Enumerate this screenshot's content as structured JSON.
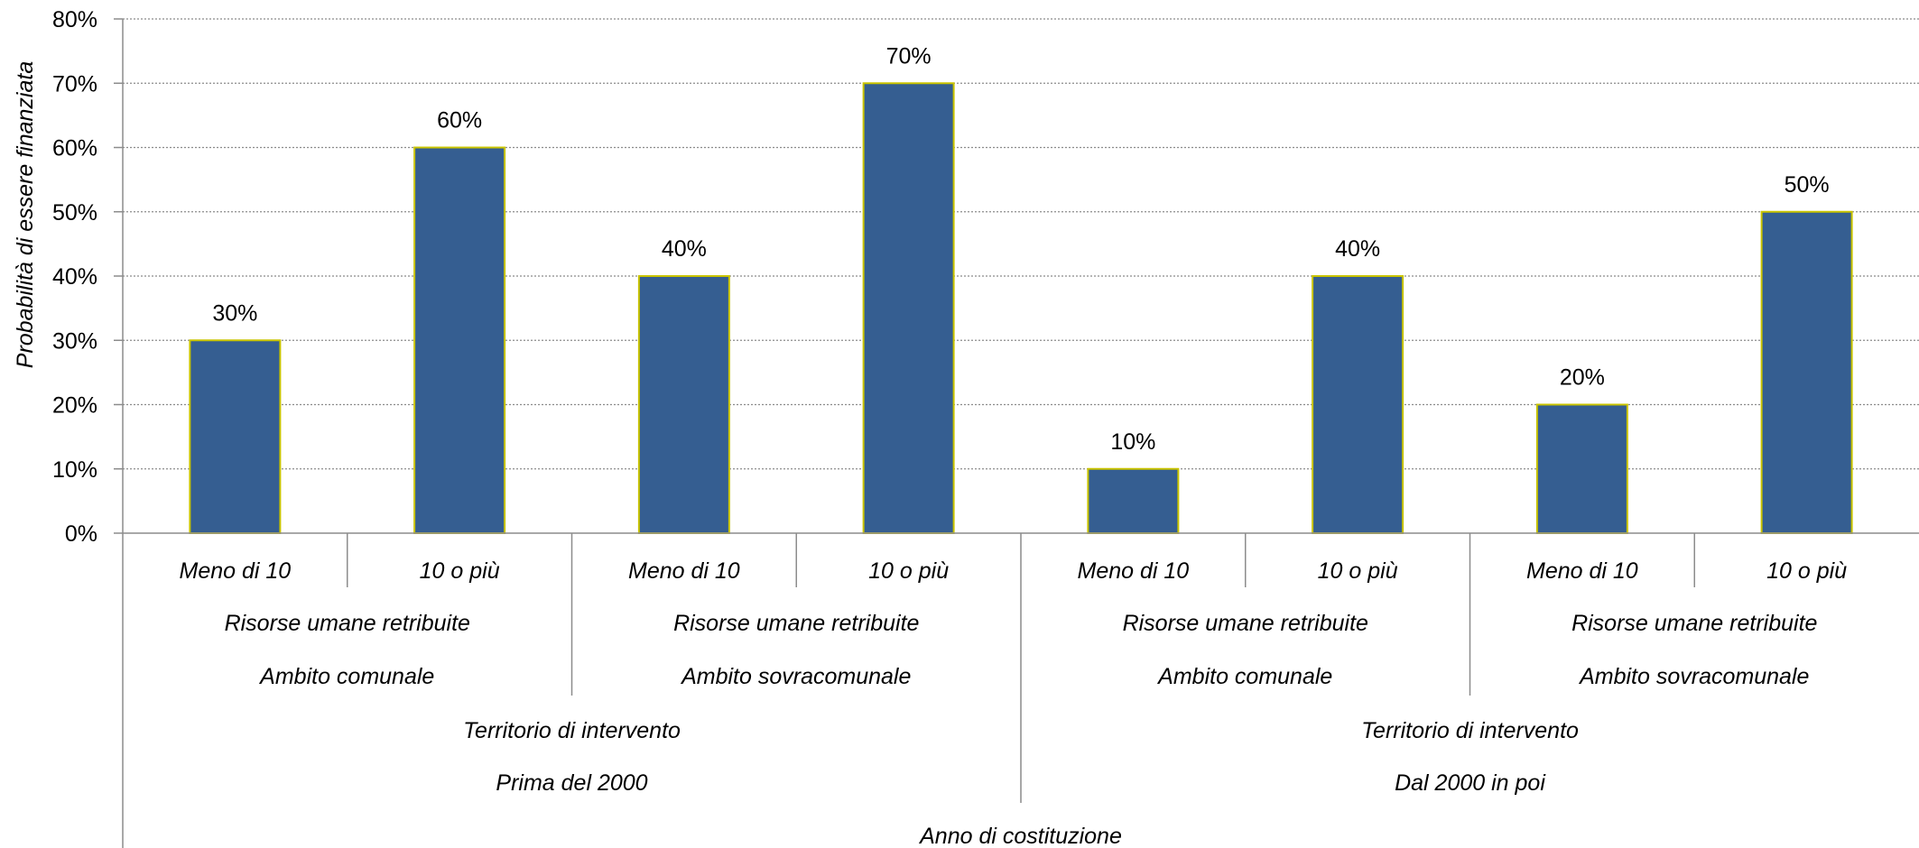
{
  "chart_data": {
    "type": "bar",
    "title": "",
    "ylabel": "Probabilità di essere finanziata",
    "ylim": [
      0,
      80
    ],
    "yticks": [
      "0%",
      "10%",
      "20%",
      "30%",
      "40%",
      "50%",
      "60%",
      "70%",
      "80%"
    ],
    "grid": true,
    "legend": "none",
    "colors": {
      "bar_fill": "#355E91",
      "bar_edge": "#C9C400",
      "grid": "#8C8C8C",
      "axis": "#8C8C8C"
    },
    "values": [
      30,
      60,
      40,
      70,
      10,
      40,
      20,
      50
    ],
    "data_labels": [
      "30%",
      "60%",
      "40%",
      "70%",
      "10%",
      "40%",
      "20%",
      "50%"
    ],
    "categories": [
      "Meno di 10",
      "10 o più",
      "Meno di 10",
      "10 o più",
      "Meno di 10",
      "10 o più",
      "Meno di 10",
      "10 o più"
    ],
    "level2": [
      "Risorse umane retribuite",
      "Risorse umane retribuite",
      "Risorse umane retribuite",
      "Risorse umane retribuite"
    ],
    "level3": [
      "Ambito comunale",
      "Ambito sovracomunale",
      "Ambito comunale",
      "Ambito sovracomunale"
    ],
    "level4": [
      "Territorio di intervento",
      "Territorio di intervento"
    ],
    "level5": [
      "Prima del 2000",
      "Dal 2000 in poi"
    ],
    "level6": [
      "Anno di costituzione"
    ]
  }
}
